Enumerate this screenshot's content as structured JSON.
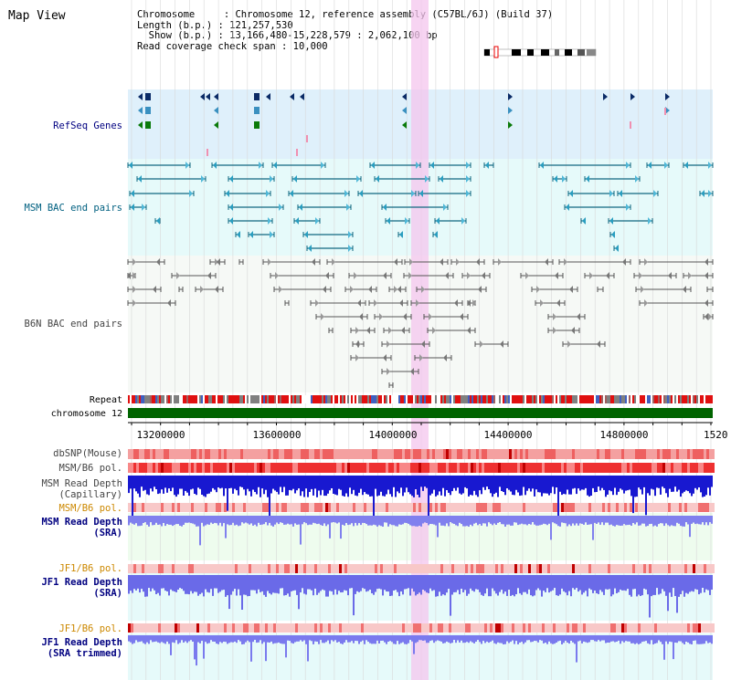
{
  "title": "Map View",
  "info": {
    "line1": "Chromosome     : Chromosome 12, reference assembly (C57BL/6J) (Build 37)",
    "line2": "Length (b.p.) : 121,257,530",
    "line3": "  Show (b.p.) : 13,166,480-15,228,579 : 2,062,100 bp",
    "line4": "Read coverage check span : 10,000"
  },
  "tracks": {
    "refseq": {
      "label": "RefSeq Genes",
      "color": "#000080"
    },
    "msm_bac": {
      "label": "MSM BAC end pairs",
      "color": "#006080"
    },
    "b6n_bac": {
      "label": "B6N BAC end pairs",
      "color": "#444444"
    },
    "repeat": {
      "label": "Repeat"
    },
    "chromosome": {
      "label": "chromosome 12",
      "color": "#006400"
    },
    "dbsnp": {
      "label": "dbSNP(Mouse)"
    },
    "msm_b6_pol_1": {
      "label": "MSM/B6 pol."
    },
    "msm_depth_cap": {
      "label_1": "MSM Read Depth",
      "label_2": "(Capillary)"
    },
    "msm_b6_pol_2": {
      "label": "MSM/B6 pol.",
      "color": "#cc8800"
    },
    "msm_depth_sra": {
      "label_1": "MSM Read Depth",
      "label_2": "(SRA)"
    },
    "jf1_pol_1": {
      "label": "JF1/B6 pol.",
      "color": "#cc8800"
    },
    "jf1_depth_sra": {
      "label_1": "JF1 Read Depth",
      "label_2": "(SRA)"
    },
    "jf1_pol_2": {
      "label": "JF1/B6 pol.",
      "color": "#cc8800"
    },
    "jf1_depth_trim": {
      "label_1": "JF1 Read Depth",
      "label_2": "(SRA trimmed)"
    }
  },
  "axis": {
    "ticks": [
      "13200000",
      "13600000",
      "14000000",
      "14400000",
      "14800000",
      "1520"
    ]
  },
  "colors": {
    "refseq_bg": "#dff0fb",
    "bac_bg": "#e6fafa",
    "b6n_bg": "#f4f8f4",
    "highlight": "#f4c6ee",
    "depth_blue": "#2020d8",
    "depth_light": "#7e7ef0"
  }
}
